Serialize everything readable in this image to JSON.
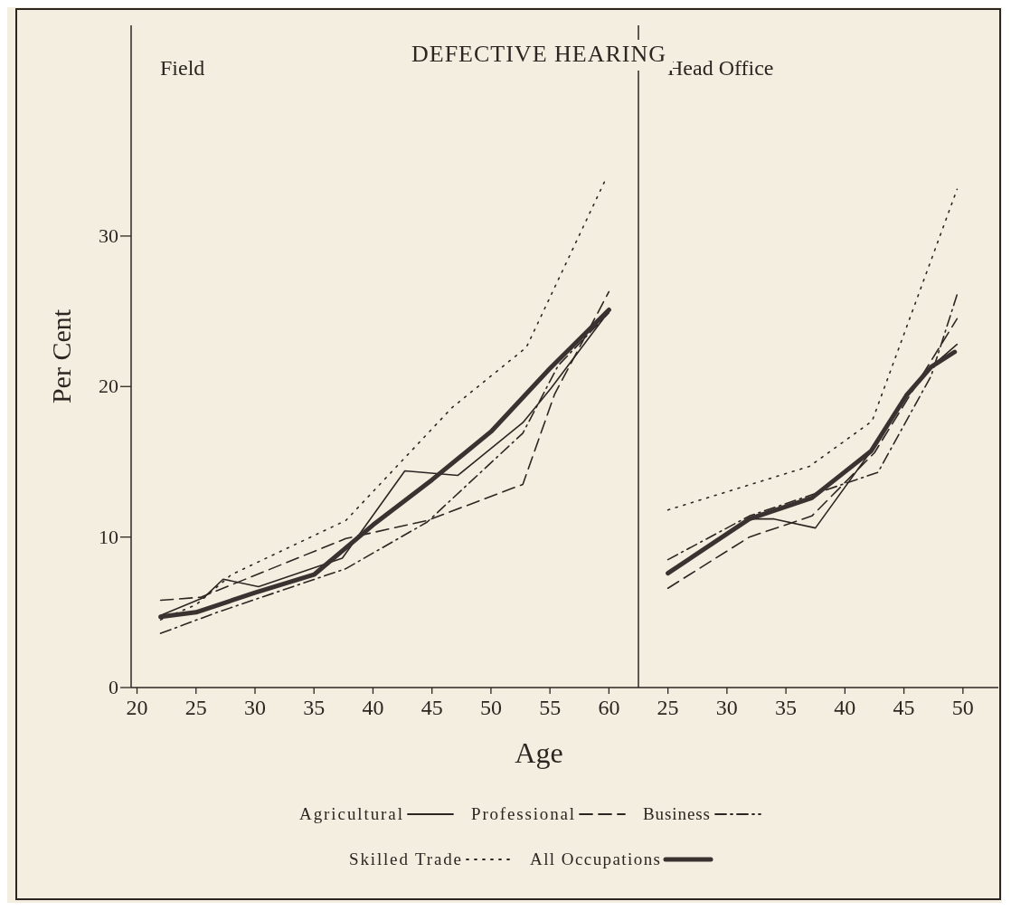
{
  "chart_data": [
    {
      "type": "line",
      "title": "DEFECTIVE HEARING",
      "subtitle": "Field",
      "xlabel": "Age",
      "ylabel": "Per Cent",
      "xlim": [
        19.5,
        62.5
      ],
      "xticks": [
        20,
        25,
        30,
        35,
        40,
        45,
        50,
        55,
        60
      ],
      "ylim": [
        0,
        44
      ],
      "yticks": [
        0,
        10,
        20,
        30
      ],
      "legend": "bottom",
      "grid": false,
      "marker": "none",
      "series": [
        {
          "name": "Agricultural",
          "color": "#2b2622",
          "line_style": "solid",
          "x": [
            22,
            25.7,
            27.3,
            30.3,
            37.4,
            42.7,
            47.2,
            52.7,
            55.1,
            60
          ],
          "values": [
            4.8,
            6.0,
            7.2,
            6.7,
            8.6,
            14.4,
            14.1,
            17.6,
            19.9,
            25.0
          ]
        },
        {
          "name": "Professional",
          "color": "#2b2622",
          "line_style": "dashed",
          "x": [
            22,
            25.4,
            37.7,
            44.6,
            52.7,
            55.4,
            60
          ],
          "values": [
            5.8,
            6.0,
            9.9,
            11.1,
            13.5,
            19.5,
            26.3
          ]
        },
        {
          "name": "Business",
          "color": "#2b2622",
          "line_style": "dashdot",
          "x": [
            22,
            26.8,
            37.7,
            44.6,
            52.7,
            55.7,
            60
          ],
          "values": [
            3.6,
            5.0,
            7.9,
            11.0,
            16.9,
            21.4,
            24.9
          ]
        },
        {
          "name": "Skilled Trade",
          "color": "#2b2622",
          "line_style": "dotted",
          "x": [
            22,
            25,
            28,
            37.7,
            46.7,
            53,
            59.8
          ],
          "values": [
            4.5,
            5.5,
            7.5,
            11.1,
            18.6,
            22.6,
            33.9
          ]
        },
        {
          "name": "All Occupations",
          "color": "#3a3230",
          "line_style": "solid",
          "x": [
            22,
            25,
            30,
            35,
            40,
            45,
            50,
            55,
            60
          ],
          "values": [
            4.7,
            5.0,
            6.3,
            7.5,
            10.8,
            13.8,
            17.0,
            21.2,
            25.1
          ]
        }
      ]
    },
    {
      "type": "line",
      "subtitle": "Head Office",
      "xlim": [
        22.5,
        53
      ],
      "xticks": [
        25,
        30,
        35,
        40,
        45,
        50
      ],
      "ylim": [
        0,
        44
      ],
      "tick_labels": "x",
      "grid": false,
      "marker": "none",
      "series": [
        {
          "color": "#2b2622",
          "line_style": "solid",
          "x": [
            25,
            31.9,
            34,
            37.5,
            42.2,
            45.2,
            47.3,
            49.5
          ],
          "values": [
            7.6,
            11.2,
            11.2,
            10.6,
            15.7,
            19.4,
            21.3,
            22.8
          ]
        },
        {
          "color": "#2b2622",
          "line_style": "dashed",
          "x": [
            25,
            31.9,
            37.2,
            42.5,
            49.5
          ],
          "values": [
            6.6,
            10.0,
            11.4,
            15.6,
            24.5
          ]
        },
        {
          "color": "#2b2622",
          "line_style": "dashdot",
          "x": [
            25,
            31.9,
            42.8,
            47.3,
            49.5
          ],
          "values": [
            8.5,
            11.4,
            14.3,
            20.7,
            26.1
          ]
        },
        {
          "color": "#2b2622",
          "line_style": "dotted",
          "x": [
            25,
            37,
            42.3,
            49.5
          ],
          "values": [
            11.8,
            14.7,
            17.7,
            33.1
          ]
        },
        {
          "color": "#3a3230",
          "line_style": "solid",
          "x": [
            25,
            31.9,
            37.2,
            42.2,
            45.2,
            47.3,
            49.3
          ],
          "values": [
            7.6,
            11.2,
            12.6,
            15.7,
            19.4,
            21.3,
            22.3
          ]
        }
      ]
    }
  ]
}
